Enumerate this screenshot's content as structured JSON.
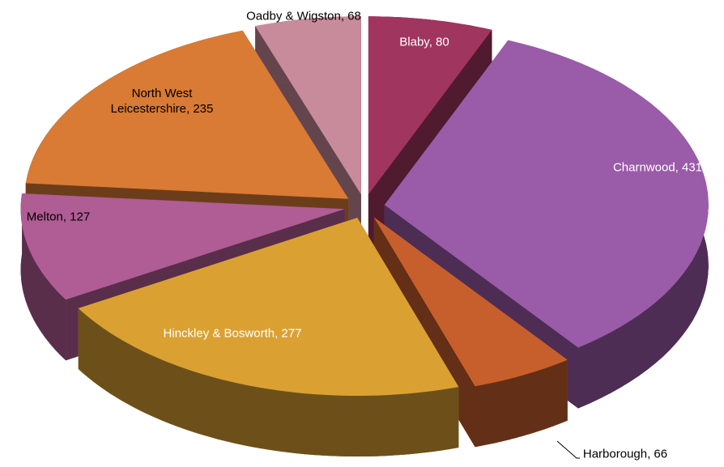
{
  "chart_data": {
    "type": "pie3d",
    "values": [
      80,
      431,
      66,
      277,
      127,
      235,
      68
    ],
    "value_labels": [
      "Blaby, 80",
      "Charnwood, 431",
      "Harborough, 66",
      "Hinckley & Bosworth, 277",
      "Melton, 127",
      "North West Leicestershire, 235",
      "Oadby & Wigston, 68"
    ],
    "colors": [
      "#a0355f",
      "#9a5ba8",
      "#c75f2c",
      "#daa132",
      "#b05c95",
      "#d97a35",
      "#c88b9c"
    ]
  }
}
